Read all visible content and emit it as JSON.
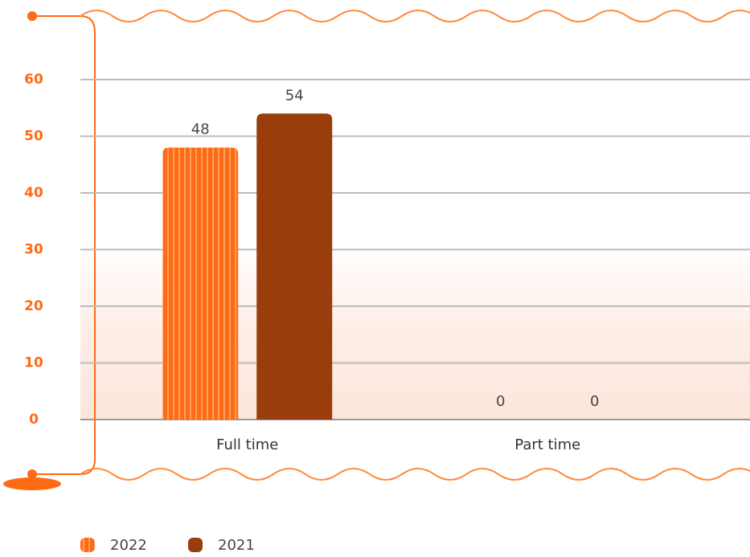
{
  "chart_data": {
    "type": "bar",
    "categories": [
      "Full time",
      "Part time"
    ],
    "series": [
      {
        "name": "2022",
        "color": "#ff6a14",
        "values": [
          48,
          0
        ]
      },
      {
        "name": "2021",
        "color": "#9a3d0c",
        "values": [
          54,
          0
        ]
      }
    ],
    "ylim": [
      0,
      60
    ],
    "yticks": [
      0,
      10,
      20,
      30,
      40,
      50,
      60
    ],
    "grid": true
  }
}
